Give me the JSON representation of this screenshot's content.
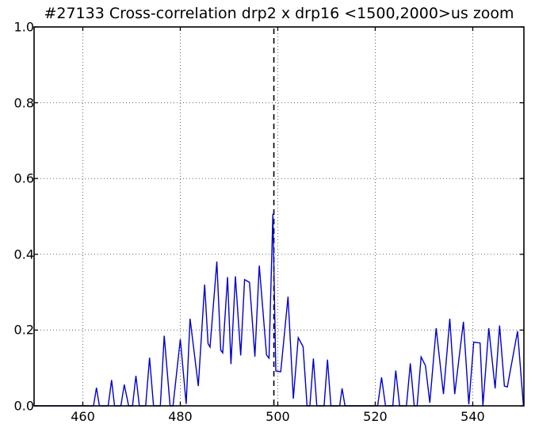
{
  "chart_data": {
    "type": "line",
    "title": "#27133 Cross-correlation drp2 x drp16 <1500,2000>us zoom",
    "xlabel": "",
    "ylabel": "",
    "xlim": [
      450,
      550.5
    ],
    "ylim": [
      0.0,
      1.0
    ],
    "grid": true,
    "legend": false,
    "xticks": [
      460,
      480,
      500,
      520,
      540
    ],
    "xticklabels": [
      "460",
      "480",
      "500",
      "520",
      "540"
    ],
    "yticks": [
      0.0,
      0.2,
      0.4,
      0.6,
      0.8,
      1.0
    ],
    "yticklabels": [
      "0.0",
      "0.2",
      "0.4",
      "0.6",
      "0.8",
      "1.0"
    ],
    "line_color": "#0000cc",
    "grid_color": "#666666",
    "axis_color": "#000000",
    "vline": {
      "x": 499.2,
      "color": "#000000",
      "style": "dashed"
    },
    "series": [
      {
        "name": "cross-correlation",
        "points": [
          [
            450.0,
            0
          ],
          [
            462.2,
            0
          ],
          [
            462.8,
            0.048
          ],
          [
            463.4,
            0
          ],
          [
            465.2,
            0
          ],
          [
            465.9,
            0.068
          ],
          [
            466.5,
            0
          ],
          [
            467.8,
            0
          ],
          [
            468.5,
            0.056
          ],
          [
            469.4,
            0
          ],
          [
            470.2,
            0
          ],
          [
            470.9,
            0.079
          ],
          [
            471.6,
            0
          ],
          [
            472.9,
            0
          ],
          [
            473.7,
            0.127
          ],
          [
            474.5,
            0
          ],
          [
            475.9,
            0
          ],
          [
            476.7,
            0.185
          ],
          [
            477.9,
            0
          ],
          [
            478.5,
            0
          ],
          [
            480.0,
            0.176
          ],
          [
            481.2,
            0.005
          ],
          [
            482.0,
            0.23
          ],
          [
            483.7,
            0.052
          ],
          [
            485.0,
            0.32
          ],
          [
            485.7,
            0.164
          ],
          [
            486.1,
            0.155
          ],
          [
            487.5,
            0.381
          ],
          [
            488.3,
            0.147
          ],
          [
            488.7,
            0.14
          ],
          [
            489.7,
            0.34
          ],
          [
            490.4,
            0.11
          ],
          [
            491.3,
            0.342
          ],
          [
            492.4,
            0.133
          ],
          [
            493.2,
            0.333
          ],
          [
            494.2,
            0.326
          ],
          [
            495.3,
            0.13
          ],
          [
            496.2,
            0.37
          ],
          [
            497.7,
            0.134
          ],
          [
            498.2,
            0.126
          ],
          [
            499.0,
            0.507
          ],
          [
            499.6,
            0.092
          ],
          [
            500.6,
            0.09
          ],
          [
            502.1,
            0.288
          ],
          [
            503.2,
            0.019
          ],
          [
            504.2,
            0.18
          ],
          [
            505.2,
            0.156
          ],
          [
            506.0,
            0
          ],
          [
            506.6,
            0
          ],
          [
            507.3,
            0.125
          ],
          [
            508.0,
            0
          ],
          [
            509.5,
            0
          ],
          [
            510.2,
            0.122
          ],
          [
            510.9,
            0
          ],
          [
            512.7,
            0
          ],
          [
            513.2,
            0.046
          ],
          [
            513.8,
            0
          ],
          [
            520.5,
            0
          ],
          [
            521.3,
            0.075
          ],
          [
            522.1,
            0
          ],
          [
            523.6,
            0
          ],
          [
            524.2,
            0.093
          ],
          [
            525.0,
            0
          ],
          [
            526.4,
            0
          ],
          [
            527.2,
            0.112
          ],
          [
            528.0,
            0
          ],
          [
            528.6,
            0
          ],
          [
            529.4,
            0.129
          ],
          [
            530.3,
            0.106
          ],
          [
            531.2,
            0.008
          ],
          [
            532.5,
            0.205
          ],
          [
            534.0,
            0.031
          ],
          [
            535.3,
            0.23
          ],
          [
            536.3,
            0.031
          ],
          [
            538.1,
            0.222
          ],
          [
            539.2,
            0.004
          ],
          [
            540.2,
            0.168
          ],
          [
            541.5,
            0.166
          ],
          [
            542.1,
            0
          ],
          [
            543.3,
            0.205
          ],
          [
            544.6,
            0.046
          ],
          [
            545.5,
            0.212
          ],
          [
            546.5,
            0.052
          ],
          [
            547.1,
            0.05
          ],
          [
            549.2,
            0.197
          ],
          [
            550.4,
            0
          ]
        ]
      }
    ]
  }
}
